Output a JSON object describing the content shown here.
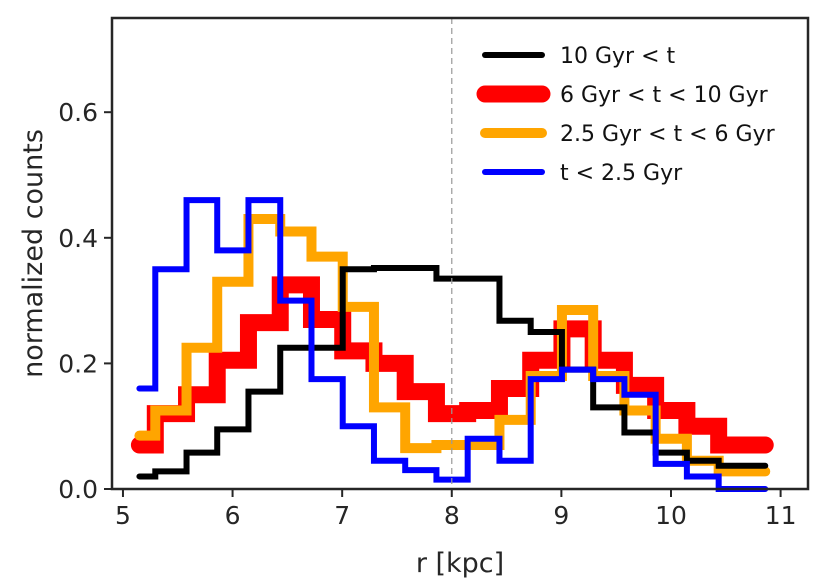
{
  "chart_data": {
    "type": "line",
    "drawstyle": "steps-mid",
    "xlabel": "r [kpc]",
    "ylabel": "normalized counts",
    "xlim": [
      4.9,
      11.25
    ],
    "ylim": [
      0,
      0.75
    ],
    "xticks": [
      5,
      6,
      7,
      8,
      9,
      10,
      11
    ],
    "yticks": [
      0.0,
      0.2,
      0.4,
      0.6
    ],
    "ytick_labels": [
      "0.0",
      "0.2",
      "0.4",
      "0.6"
    ],
    "vline": {
      "x": 8.0,
      "style": "dashed",
      "color": "#999999"
    },
    "grid": false,
    "legend_position": "top-right",
    "x": [
      5.15,
      5.44,
      5.72,
      6.0,
      6.29,
      6.58,
      6.86,
      7.15,
      7.43,
      7.72,
      8.0,
      8.29,
      8.58,
      8.86,
      9.15,
      9.43,
      9.72,
      10.0,
      10.29,
      10.58,
      10.86
    ],
    "series": [
      {
        "name": "10 Gyr < t",
        "color": "#000000",
        "width": "thin",
        "values": [
          0.02,
          0.028,
          0.058,
          0.095,
          0.155,
          0.225,
          0.225,
          0.35,
          0.352,
          0.352,
          0.335,
          0.335,
          0.268,
          0.25,
          0.19,
          0.13,
          0.09,
          0.058,
          0.045,
          0.037,
          0.037
        ]
      },
      {
        "name": "6 Gyr < t < 10 Gyr",
        "color": "#ff0000",
        "width": "thick",
        "values": [
          0.07,
          0.12,
          0.15,
          0.205,
          0.265,
          0.325,
          0.27,
          0.22,
          0.2,
          0.155,
          0.12,
          0.125,
          0.16,
          0.205,
          0.255,
          0.205,
          0.165,
          0.125,
          0.1,
          0.07,
          0.07
        ]
      },
      {
        "name": "2.5 Gyr < t < 6 Gyr",
        "color": "#ffa500",
        "width": "medium",
        "values": [
          0.085,
          0.125,
          0.225,
          0.33,
          0.43,
          0.41,
          0.37,
          0.29,
          0.13,
          0.065,
          0.07,
          0.07,
          0.11,
          0.18,
          0.285,
          0.18,
          0.125,
          0.08,
          0.045,
          0.028,
          0.028
        ]
      },
      {
        "name": "t < 2.5 Gyr",
        "color": "#0000ff",
        "width": "thin",
        "values": [
          0.16,
          0.35,
          0.46,
          0.38,
          0.46,
          0.3,
          0.175,
          0.1,
          0.045,
          0.03,
          0.015,
          0.08,
          0.045,
          0.175,
          0.19,
          0.175,
          0.15,
          0.04,
          0.02,
          0.0,
          0.0
        ]
      }
    ]
  }
}
